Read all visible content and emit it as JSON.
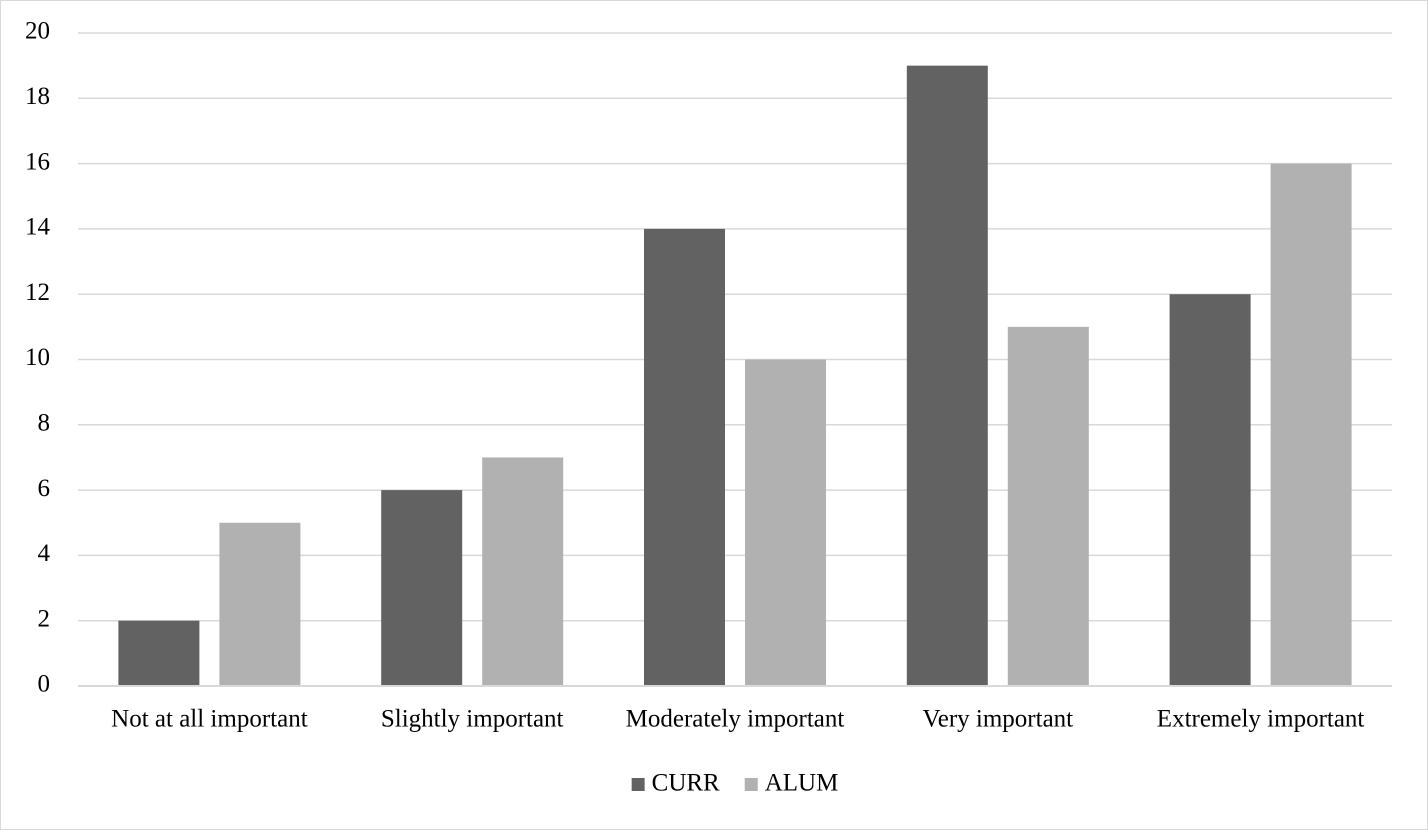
{
  "chart_data": {
    "type": "bar",
    "categories": [
      "Not at all important",
      "Slightly important",
      "Moderately important",
      "Very important",
      "Extremely important"
    ],
    "series": [
      {
        "name": "CURR",
        "color": "#626262",
        "values": [
          2,
          6,
          14,
          19,
          12
        ]
      },
      {
        "name": "ALUM",
        "color": "#b1b1b1",
        "values": [
          5,
          7,
          10,
          11,
          16
        ]
      }
    ],
    "ylim": [
      0,
      20
    ],
    "yticks": [
      0,
      2,
      4,
      6,
      8,
      10,
      12,
      14,
      16,
      18,
      20
    ],
    "grid": true,
    "legend": "bottom"
  }
}
